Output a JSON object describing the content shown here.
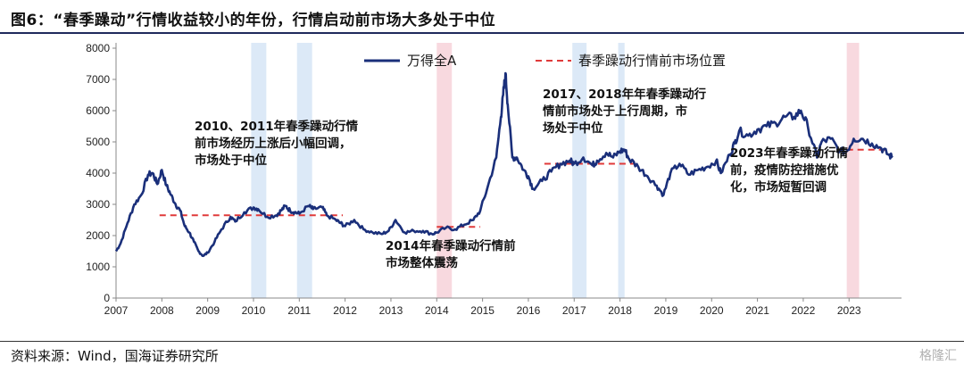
{
  "title": "图6：“春季躁动”行情收益较小的年份，行情启动前市场大多处于中位",
  "source": "资料来源：Wind，国海证券研究所",
  "watermark": "格隆汇",
  "colors": {
    "line": "#1a2f7a",
    "dashed": "#e03a3a",
    "band_blue": "#dce9f7",
    "band_pink": "#f8d9df"
  },
  "chart_data": {
    "type": "line",
    "title": "",
    "xlabel": "",
    "ylabel": "",
    "ylim": [
      0,
      8000
    ],
    "xlim": [
      2007,
      2023.95
    ],
    "y_ticks": [
      "0",
      "1000",
      "2000",
      "3000",
      "4000",
      "5000",
      "6000",
      "7000",
      "8000"
    ],
    "x_ticks": [
      "2007",
      "2008",
      "2009",
      "2010",
      "2011",
      "2012",
      "2013",
      "2014",
      "2015",
      "2016",
      "2017",
      "2018",
      "2019",
      "2020",
      "2021",
      "2022",
      "2023"
    ],
    "legend": {
      "placement": "top",
      "items": [
        "万得全A",
        "春季躁动行情前市场位置"
      ]
    },
    "series": [
      {
        "name": "万得全A",
        "x": [
          2007.0,
          2007.1,
          2007.25,
          2007.4,
          2007.55,
          2007.7,
          2007.8,
          2007.9,
          2008.0,
          2008.1,
          2008.2,
          2008.3,
          2008.4,
          2008.5,
          2008.6,
          2008.7,
          2008.8,
          2008.9,
          2009.0,
          2009.15,
          2009.3,
          2009.5,
          2009.6,
          2009.8,
          2010.0,
          2010.1,
          2010.3,
          2010.5,
          2010.6,
          2010.7,
          2010.8,
          2010.9,
          2011.0,
          2011.2,
          2011.3,
          2011.5,
          2011.6,
          2011.8,
          2011.9,
          2012.0,
          2012.2,
          2012.4,
          2012.6,
          2012.8,
          2012.95,
          2013.1,
          2013.3,
          2013.5,
          2013.7,
          2013.9,
          2014.0,
          2014.2,
          2014.4,
          2014.6,
          2014.8,
          2014.95,
          2015.1,
          2015.3,
          2015.4,
          2015.45,
          2015.5,
          2015.55,
          2015.65,
          2015.75,
          2015.9,
          2016.0,
          2016.1,
          2016.3,
          2016.5,
          2016.7,
          2016.9,
          2017.0,
          2017.2,
          2017.4,
          2017.5,
          2017.7,
          2017.85,
          2018.0,
          2018.1,
          2018.2,
          2018.4,
          2018.6,
          2018.8,
          2018.95,
          2019.1,
          2019.3,
          2019.5,
          2019.7,
          2019.9,
          2020.1,
          2020.2,
          2020.4,
          2020.5,
          2020.6,
          2020.8,
          2021.0,
          2021.2,
          2021.4,
          2021.6,
          2021.8,
          2021.95,
          2022.1,
          2022.3,
          2022.4,
          2022.6,
          2022.8,
          2022.95,
          2023.1,
          2023.3,
          2023.5,
          2023.7,
          2023.85,
          2023.95
        ],
        "values": [
          1500,
          1750,
          2400,
          3000,
          3300,
          3950,
          4000,
          3650,
          4100,
          3600,
          3300,
          3000,
          2800,
          2300,
          2100,
          1800,
          1500,
          1350,
          1450,
          1800,
          2200,
          2600,
          2450,
          2750,
          2900,
          2850,
          2600,
          2650,
          2800,
          2950,
          2800,
          2750,
          2700,
          2950,
          2850,
          2900,
          2650,
          2500,
          2400,
          2300,
          2500,
          2200,
          2100,
          2050,
          2150,
          2500,
          2100,
          2150,
          2150,
          2050,
          2100,
          2250,
          2200,
          2350,
          2500,
          2800,
          3500,
          4500,
          5800,
          6500,
          7200,
          6200,
          4500,
          4500,
          4100,
          3900,
          3500,
          3750,
          4050,
          4300,
          4400,
          4300,
          4500,
          4250,
          4400,
          4650,
          4500,
          4700,
          4750,
          4450,
          4200,
          3900,
          3600,
          3300,
          4000,
          4300,
          3950,
          4100,
          4200,
          4400,
          4000,
          4600,
          4950,
          5350,
          5200,
          5400,
          5500,
          5600,
          5800,
          5800,
          6000,
          5500,
          4500,
          5000,
          5100,
          4700,
          4700,
          5100,
          5100,
          4950,
          4800,
          4600,
          4500
        ]
      }
    ],
    "reference_lines": [
      {
        "x": [
          2007.95,
          2011.95
        ],
        "y": 2650
      },
      {
        "x": [
          2014.0,
          2014.95
        ],
        "y": 2280
      },
      {
        "x": [
          2016.35,
          2018.3
        ],
        "y": 4300
      },
      {
        "x": [
          2022.95,
          2023.85
        ],
        "y": 4750
      }
    ],
    "bands": [
      {
        "from": 2009.95,
        "to": 2010.28,
        "color": "blue"
      },
      {
        "from": 2010.95,
        "to": 2011.28,
        "color": "blue"
      },
      {
        "from": 2014.0,
        "to": 2014.33,
        "color": "pink"
      },
      {
        "from": 2016.96,
        "to": 2017.27,
        "color": "blue"
      },
      {
        "from": 2017.96,
        "to": 2018.1,
        "color": "blue"
      },
      {
        "from": 2022.95,
        "to": 2023.22,
        "color": "pink"
      }
    ],
    "annotations": [
      {
        "lines": [
          "2010、2011年春季躁动行情",
          "前市场经历上涨后小幅回调，",
          "市场处于中位"
        ]
      },
      {
        "lines": [
          "2014年春季躁动行情前",
          "市场整体震荡"
        ]
      },
      {
        "lines": [
          "2017、2018年年春季躁动行",
          "情前市场处于上行周期，市",
          "场处于中位"
        ]
      },
      {
        "lines": [
          "2023年春季躁动行情",
          "前，疫情防控措施优",
          "化，市场短暂回调"
        ]
      }
    ]
  }
}
